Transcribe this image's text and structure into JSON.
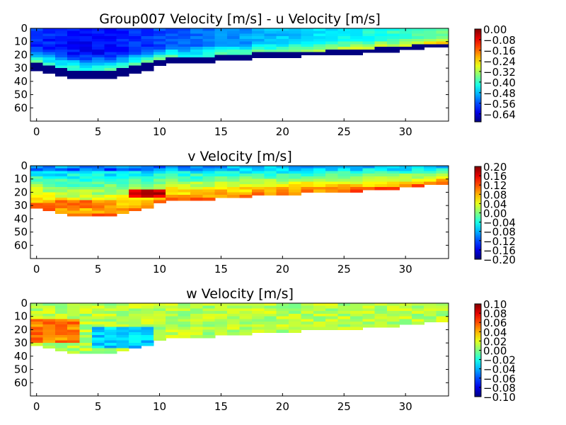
{
  "chart_data": [
    {
      "type": "heatmap",
      "title": "Group007 Velocity [m/s] - u Velocity [m/s]",
      "xlabel": "",
      "ylabel": "",
      "xlim": [
        -0.5,
        33.5
      ],
      "ylim": [
        70,
        0
      ],
      "x_ticks": [
        "0",
        "5",
        "10",
        "15",
        "20",
        "25",
        "30"
      ],
      "y_ticks": [
        "0",
        "10",
        "20",
        "30",
        "40",
        "50",
        "60"
      ],
      "colorbar": {
        "range": [
          -0.7,
          0.0
        ],
        "ticks": [
          "0.00",
          "−0.08",
          "−0.16",
          "−0.24",
          "−0.32",
          "−0.40",
          "−0.48",
          "−0.56",
          "−0.64"
        ],
        "colormap": "jet"
      },
      "grid": false
    },
    {
      "type": "heatmap",
      "title": "v Velocity [m/s]",
      "xlabel": "",
      "ylabel": "",
      "xlim": [
        -0.5,
        33.5
      ],
      "ylim": [
        70,
        0
      ],
      "x_ticks": [
        "0",
        "5",
        "10",
        "15",
        "20",
        "25",
        "30"
      ],
      "y_ticks": [
        "0",
        "10",
        "20",
        "30",
        "40",
        "50",
        "60"
      ],
      "colorbar": {
        "range": [
          -0.2,
          0.2
        ],
        "ticks": [
          "0.20",
          "0.16",
          "0.12",
          "0.08",
          "0.04",
          "0.00",
          "−0.04",
          "−0.08",
          "−0.12",
          "−0.16",
          "−0.20"
        ],
        "colormap": "jet"
      },
      "grid": false
    },
    {
      "type": "heatmap",
      "title": "w Velocity [m/s]",
      "xlabel": "",
      "ylabel": "",
      "xlim": [
        -0.5,
        33.5
      ],
      "ylim": [
        70,
        0
      ],
      "x_ticks": [
        "0",
        "5",
        "10",
        "15",
        "20",
        "25",
        "30"
      ],
      "y_ticks": [
        "0",
        "10",
        "20",
        "30",
        "40",
        "50",
        "60"
      ],
      "colorbar": {
        "range": [
          -0.1,
          0.1
        ],
        "ticks": [
          "0.10",
          "0.08",
          "0.06",
          "0.04",
          "0.02",
          "0.00",
          "−0.02",
          "−0.04",
          "−0.06",
          "−0.08",
          "−0.10"
        ],
        "colormap": "jet"
      },
      "grid": false
    }
  ],
  "ensemble_columns": [
    0,
    1,
    2,
    3,
    4,
    5,
    6,
    7,
    8,
    9,
    10,
    11,
    12,
    13,
    14,
    15,
    16,
    17,
    18,
    19,
    20,
    21,
    22,
    23,
    24,
    25,
    26,
    27,
    28,
    29,
    30,
    31,
    32,
    33
  ],
  "bottom_depth": [
    31,
    34,
    36,
    37,
    38,
    38,
    38,
    36,
    34,
    31,
    28,
    26,
    26,
    26,
    25,
    24,
    23,
    23,
    22,
    22,
    21,
    21,
    20,
    20,
    19,
    19,
    19,
    18,
    17,
    17,
    16,
    15,
    14,
    13
  ],
  "bin_size": 2
}
